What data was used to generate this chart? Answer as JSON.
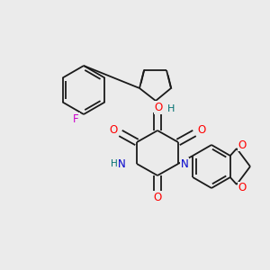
{
  "background_color": "#ebebeb",
  "bond_color": "#1a1a1a",
  "atom_colors": {
    "O": "#ff0000",
    "N": "#0000cc",
    "F": "#cc00cc",
    "H_teal": "#007070",
    "C": "#1a1a1a"
  },
  "figsize": [
    3.0,
    3.0
  ],
  "dpi": 100
}
